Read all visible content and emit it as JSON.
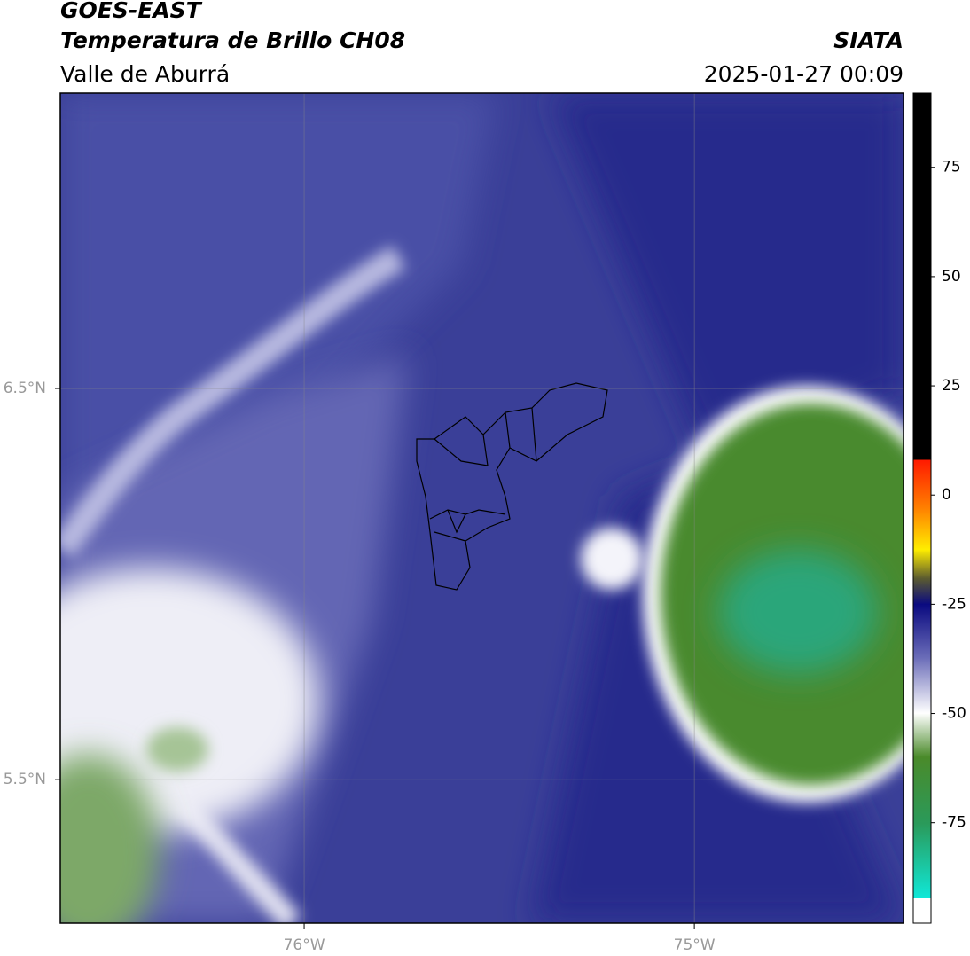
{
  "header": {
    "title": "GOES-EAST",
    "subtitle": "Temperatura de Brillo CH08",
    "source": "SIATA",
    "region": "Valle de Aburrá",
    "timestamp": "2025-01-27 00:09"
  },
  "map": {
    "xlim": [
      -76.625,
      -74.464
    ],
    "ylim": [
      5.133,
      7.255
    ],
    "xticks": [
      {
        "value": -76,
        "label": "76°W"
      },
      {
        "value": -75,
        "label": "75°W"
      }
    ],
    "yticks": [
      {
        "value": 6.5,
        "label": "6.5°N"
      },
      {
        "value": 5.5,
        "label": "5.5°N"
      }
    ],
    "grid": true
  },
  "colorbar": {
    "lim": [
      -98,
      92
    ],
    "ticks": [
      -75,
      -50,
      -25,
      0,
      25,
      50,
      75
    ]
  }
}
